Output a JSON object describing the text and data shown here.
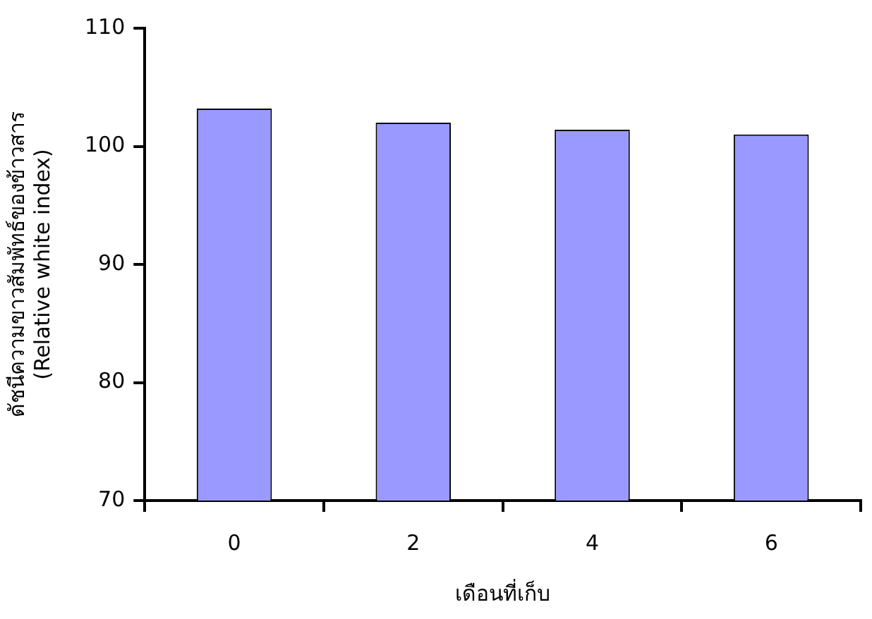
{
  "chart_data": {
    "type": "bar",
    "categories": [
      "0",
      "2",
      "4",
      "6"
    ],
    "values": [
      103.2,
      102.0,
      101.4,
      101.0
    ],
    "color": "#9999ff",
    "ylim": [
      70,
      110
    ],
    "yticks": [
      70,
      80,
      90,
      100,
      110
    ],
    "grid": false,
    "legend": false,
    "xlabel": "เดือนที่เก็บ",
    "ylabel": "ดัชนีความขาวสัมพัทธ์ของข้าวสาร\n(Relative white index)"
  }
}
